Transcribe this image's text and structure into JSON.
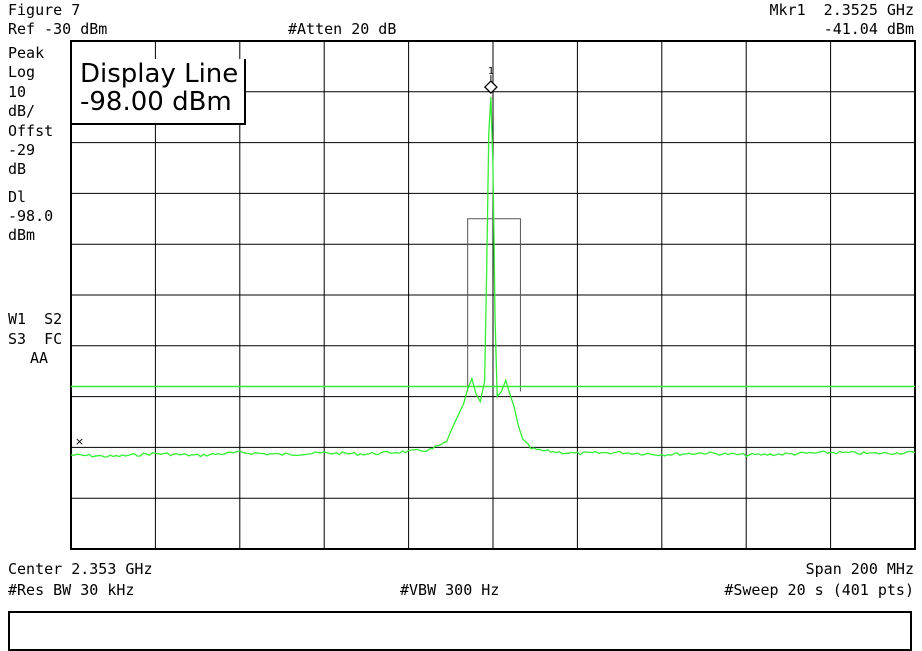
{
  "header": {
    "figure_label": "Figure 7",
    "ref_level": "Ref -30 dBm",
    "atten": "#Atten 20 dB",
    "marker_freq": "Mkr1  2.3525 GHz",
    "marker_level": "-41.04 dBm"
  },
  "left_panel": {
    "detector": "Peak",
    "scale_type": "Log",
    "scale_value": "10",
    "scale_unit": "dB/",
    "offset_label": "Offst",
    "offset_value": "-29",
    "offset_unit": "dB",
    "dl_label": "Dl",
    "dl_value": "-98.0",
    "dl_unit": "dBm",
    "trace_flags_1": "W1  S2",
    "trace_flags_2": "S3  FC",
    "trace_flags_3": "AA"
  },
  "display_line_box": {
    "title": "Display Line",
    "value": "-98.00 dBm"
  },
  "footer": {
    "center": "Center 2.353 GHz",
    "span": "Span 200 MHz",
    "rbw": "#Res BW 30 kHz",
    "vbw": "#VBW 300 Hz",
    "sweep": "#Sweep 20 s (401 pts)"
  },
  "colors": {
    "trace": "#33ee33",
    "grid": "#000000",
    "background": "#ffffff"
  },
  "chart_data": {
    "type": "line",
    "xlabel": "",
    "ylabel": "",
    "x_unit": "GHz",
    "y_unit": "dBm",
    "xlim": [
      2.253,
      2.453
    ],
    "ylim": [
      -130,
      -30
    ],
    "grid": true,
    "divisions": {
      "x": 10,
      "y": 10
    },
    "display_line": -98.0,
    "marker": {
      "label": "1",
      "x": 2.3525,
      "y": -41.04
    },
    "series": [
      {
        "values_x": [
          2.253,
          2.263,
          2.273,
          2.283,
          2.293,
          2.303,
          2.313,
          2.323,
          2.333,
          2.338,
          2.342,
          2.344,
          2.346,
          2.347,
          2.348,
          2.349,
          2.35,
          2.351,
          2.3515,
          2.352,
          2.3525,
          2.353,
          2.3535,
          2.354,
          2.355,
          2.356,
          2.357,
          2.358,
          2.359,
          2.36,
          2.362,
          2.364,
          2.368,
          2.373,
          2.383,
          2.393,
          2.403,
          2.413,
          2.423,
          2.433,
          2.443,
          2.453
        ],
        "values": [
          -111.5,
          -111.8,
          -111.2,
          -111.6,
          -111.0,
          -111.4,
          -111.1,
          -111.3,
          -110.8,
          -110.5,
          -109.0,
          -105.0,
          -101.5,
          -98.5,
          -96.5,
          -99.5,
          -101.0,
          -97.0,
          -75.0,
          -48.0,
          -41.0,
          -55.0,
          -85.0,
          -100.0,
          -99.0,
          -96.8,
          -99.5,
          -102.0,
          -105.5,
          -108.5,
          -110.2,
          -110.6,
          -110.9,
          -111.2,
          -111.0,
          -111.4,
          -111.1,
          -111.5,
          -111.3,
          -111.0,
          -111.2,
          -111.0
        ]
      }
    ],
    "cursor_mark": {
      "x": 2.255,
      "y": -109.5,
      "symbol": "×"
    }
  }
}
